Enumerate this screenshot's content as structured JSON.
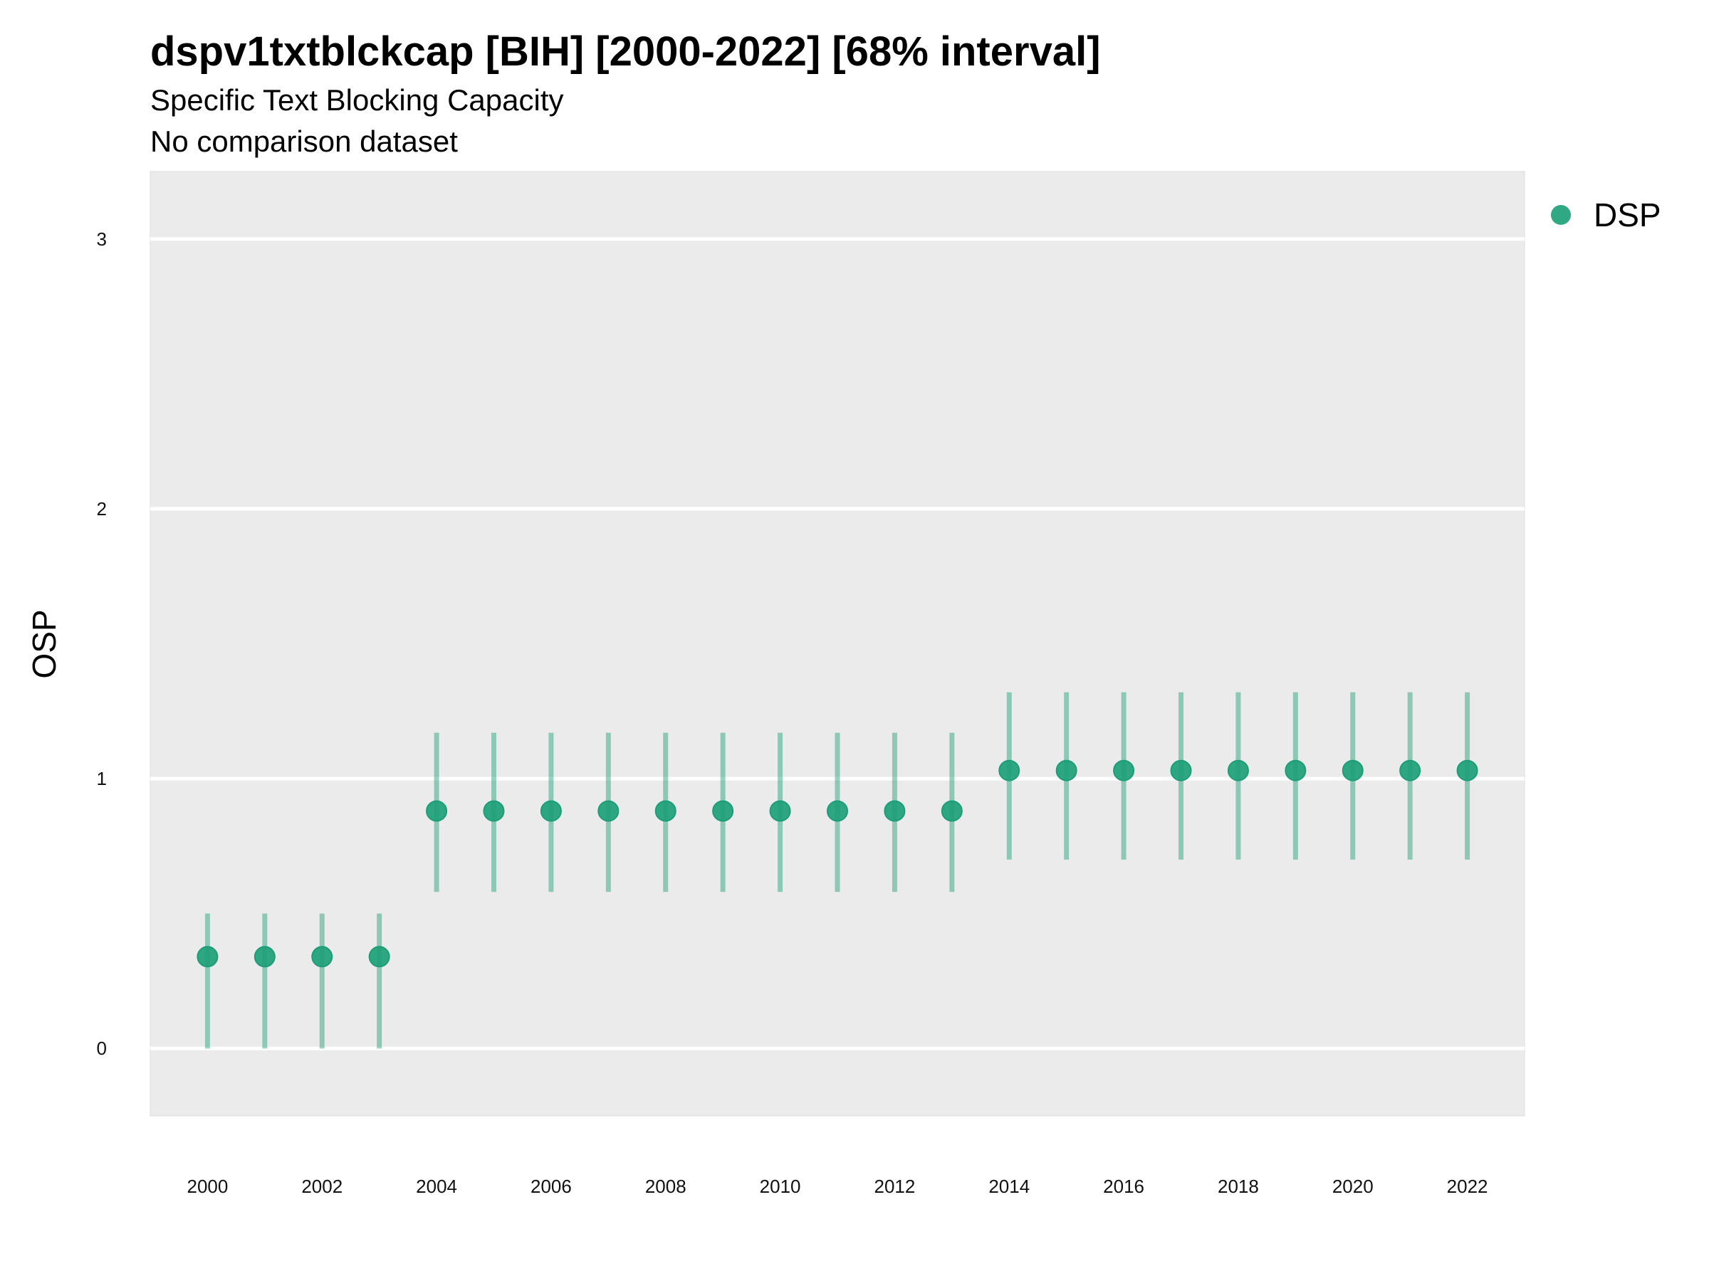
{
  "chart_data": {
    "type": "scatter",
    "title": "dspv1txtblckcap [BIH] [2000-2022] [68% interval]",
    "subtitle_lines": [
      "Specific Text Blocking Capacity",
      "No comparison dataset"
    ],
    "xlabel": "",
    "ylabel": "OSP",
    "xlim": [
      1999,
      2023
    ],
    "ylim": [
      -0.25,
      3.25
    ],
    "x_ticks": [
      2000,
      2002,
      2004,
      2006,
      2008,
      2010,
      2012,
      2014,
      2016,
      2018,
      2020,
      2022
    ],
    "y_ticks": [
      0,
      1,
      2,
      3
    ],
    "grid": true,
    "legend_position": "right",
    "series": [
      {
        "name": "DSP",
        "color": "#1B9E77",
        "x": [
          2000,
          2001,
          2002,
          2003,
          2004,
          2005,
          2006,
          2007,
          2008,
          2009,
          2010,
          2011,
          2012,
          2013,
          2014,
          2015,
          2016,
          2017,
          2018,
          2019,
          2020,
          2021,
          2022
        ],
        "y": [
          0.34,
          0.34,
          0.34,
          0.34,
          0.88,
          0.88,
          0.88,
          0.88,
          0.88,
          0.88,
          0.88,
          0.88,
          0.88,
          0.88,
          1.03,
          1.03,
          1.03,
          1.03,
          1.03,
          1.03,
          1.03,
          1.03,
          1.03
        ],
        "lower": [
          0.0,
          0.0,
          0.0,
          0.0,
          0.58,
          0.58,
          0.58,
          0.58,
          0.58,
          0.58,
          0.58,
          0.58,
          0.58,
          0.58,
          0.7,
          0.7,
          0.7,
          0.7,
          0.7,
          0.7,
          0.7,
          0.7,
          0.7
        ],
        "upper": [
          0.5,
          0.5,
          0.5,
          0.5,
          1.17,
          1.17,
          1.17,
          1.17,
          1.17,
          1.17,
          1.17,
          1.17,
          1.17,
          1.17,
          1.32,
          1.32,
          1.32,
          1.32,
          1.32,
          1.32,
          1.32,
          1.32,
          1.32
        ]
      }
    ]
  }
}
